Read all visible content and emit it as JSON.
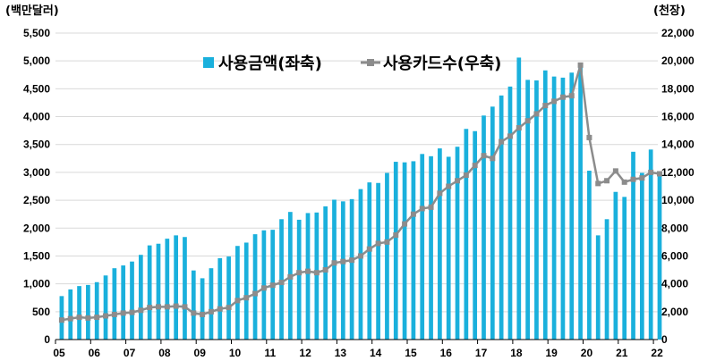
{
  "chart_data": {
    "type": "bar+line",
    "left_axis": {
      "unit": "(백만달러)",
      "min": 0,
      "max": 5500,
      "step": 500
    },
    "right_axis": {
      "unit": "(천장)",
      "min": 0,
      "max": 22000,
      "step": 2000
    },
    "x_ticks": [
      "05",
      "06",
      "07",
      "08",
      "09",
      "10",
      "11",
      "12",
      "13",
      "14",
      "15",
      "16",
      "17",
      "18",
      "19",
      "20",
      "21",
      "22"
    ],
    "series": [
      {
        "name": "사용금액(좌축)",
        "type": "bar",
        "axis": "left",
        "color": "#1ab0dc",
        "values": [
          780,
          900,
          960,
          980,
          1030,
          1150,
          1280,
          1330,
          1400,
          1520,
          1690,
          1720,
          1810,
          1870,
          1840,
          1240,
          1100,
          1280,
          1460,
          1490,
          1680,
          1740,
          1890,
          1960,
          1970,
          2160,
          2290,
          2150,
          2270,
          2280,
          2390,
          2510,
          2480,
          2520,
          2700,
          2820,
          2810,
          2990,
          3190,
          3180,
          3200,
          3330,
          3290,
          3430,
          3280,
          3460,
          3780,
          3740,
          4020,
          4180,
          4380,
          4540,
          5060,
          4660,
          4650,
          4830,
          4720,
          4700,
          4790,
          4920,
          3030,
          1870,
          2160,
          2650,
          2560,
          3370,
          2990,
          3410,
          2930
        ]
      },
      {
        "name": "사용카드수(우축)",
        "type": "line",
        "axis": "right",
        "color": "#8c8c8c",
        "values": [
          1400,
          1500,
          1600,
          1550,
          1600,
          1700,
          1800,
          1900,
          1950,
          2100,
          2300,
          2350,
          2350,
          2400,
          2350,
          1900,
          1800,
          2000,
          2200,
          2300,
          2800,
          3000,
          3300,
          3700,
          3900,
          4100,
          4500,
          4800,
          4900,
          4800,
          5000,
          5500,
          5600,
          5700,
          6000,
          6500,
          6900,
          7000,
          7500,
          8300,
          9000,
          9400,
          9500,
          10500,
          11000,
          11400,
          11800,
          12500,
          13200,
          13000,
          14200,
          14600,
          15200,
          15700,
          16200,
          16800,
          17100,
          17400,
          17500,
          19700,
          14500,
          11200,
          11400,
          12100,
          11300,
          11500,
          11600,
          12000,
          11900
        ]
      }
    ]
  }
}
